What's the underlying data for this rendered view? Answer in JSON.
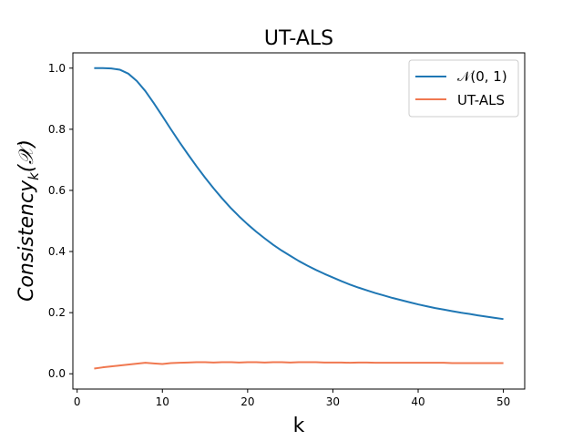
{
  "chart_data": {
    "type": "line",
    "title": "UT-ALS",
    "xlabel": "k",
    "ylabel": "Consistency_k(𝒳)",
    "ylabel_parts": {
      "main": "Consistency",
      "sub": "k",
      "tail": "(𝒳)"
    },
    "xlim": [
      -0.5,
      52.5
    ],
    "ylim": [
      -0.05,
      1.05
    ],
    "xticks": [
      0,
      10,
      20,
      30,
      40,
      50
    ],
    "xtick_labels": [
      "0",
      "10",
      "20",
      "30",
      "40",
      "50"
    ],
    "yticks": [
      0.0,
      0.2,
      0.4,
      0.6,
      0.8,
      1.0
    ],
    "ytick_labels": [
      "0.0",
      "0.2",
      "0.4",
      "0.6",
      "0.8",
      "1.0"
    ],
    "grid": false,
    "legend_position": "top-right",
    "x": [
      2,
      3,
      4,
      5,
      6,
      7,
      8,
      9,
      10,
      11,
      12,
      13,
      14,
      15,
      16,
      17,
      18,
      19,
      20,
      21,
      22,
      23,
      24,
      25,
      26,
      27,
      28,
      29,
      30,
      31,
      32,
      33,
      34,
      35,
      36,
      37,
      38,
      39,
      40,
      41,
      42,
      43,
      44,
      45,
      46,
      47,
      48,
      49,
      50
    ],
    "series": [
      {
        "name": "𝒩(0, 1)",
        "color": "#1f77b4",
        "values": [
          1.0,
          1.0,
          0.999,
          0.995,
          0.982,
          0.958,
          0.925,
          0.885,
          0.843,
          0.8,
          0.758,
          0.718,
          0.679,
          0.642,
          0.607,
          0.574,
          0.543,
          0.515,
          0.489,
          0.465,
          0.443,
          0.422,
          0.403,
          0.386,
          0.369,
          0.354,
          0.34,
          0.327,
          0.315,
          0.303,
          0.292,
          0.282,
          0.273,
          0.264,
          0.256,
          0.248,
          0.241,
          0.234,
          0.227,
          0.221,
          0.215,
          0.21,
          0.205,
          0.2,
          0.196,
          0.191,
          0.187,
          0.183,
          0.179
        ]
      },
      {
        "name": "UT-ALS",
        "color": "#f07850",
        "values": [
          0.017,
          0.021,
          0.024,
          0.027,
          0.03,
          0.033,
          0.036,
          0.034,
          0.032,
          0.035,
          0.036,
          0.037,
          0.038,
          0.038,
          0.037,
          0.038,
          0.038,
          0.037,
          0.038,
          0.038,
          0.037,
          0.038,
          0.038,
          0.037,
          0.038,
          0.038,
          0.038,
          0.037,
          0.037,
          0.037,
          0.036,
          0.037,
          0.037,
          0.036,
          0.036,
          0.036,
          0.036,
          0.036,
          0.036,
          0.036,
          0.036,
          0.036,
          0.035,
          0.035,
          0.035,
          0.035,
          0.035,
          0.035,
          0.035
        ]
      }
    ]
  }
}
